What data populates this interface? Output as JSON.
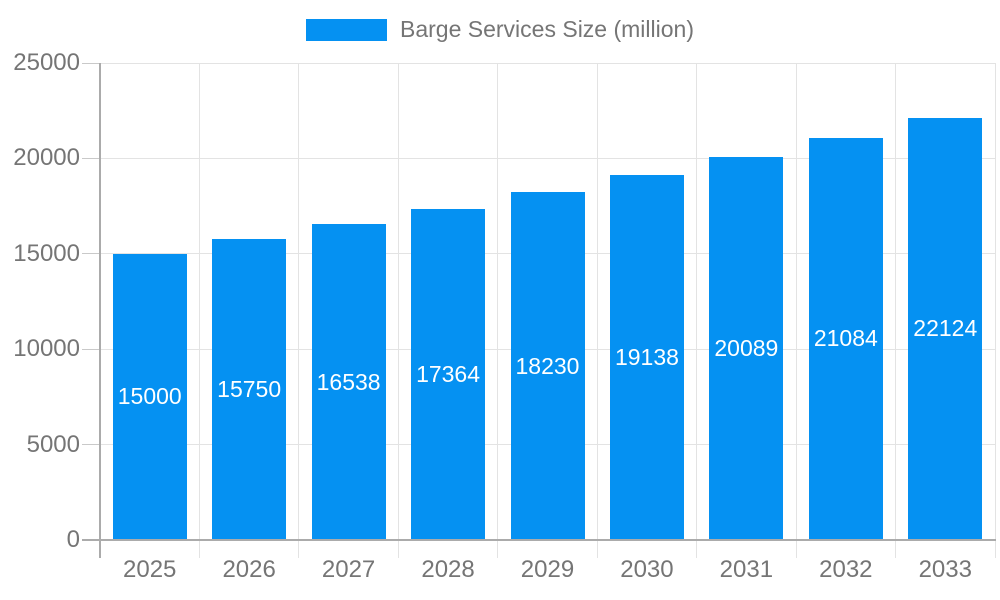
{
  "colors": {
    "bar": "#0591F2",
    "bar_label": "#FFFFFF",
    "axis_line": "#ABABAB",
    "gridline": "#E3E3E3",
    "tick_mark": "#C9C9C9",
    "tick_text": "#757575",
    "background": "#FFFFFF"
  },
  "chart_data": {
    "type": "bar",
    "title": "",
    "legend_label": "Barge Services Size (million)",
    "legend_position": "top",
    "categories": [
      "2025",
      "2026",
      "2027",
      "2028",
      "2029",
      "2030",
      "2031",
      "2032",
      "2033"
    ],
    "series": [
      {
        "name": "Barge Services Size (million)",
        "values": [
          15000,
          15750,
          16538,
          17364,
          18230,
          19138,
          20089,
          21084,
          22124
        ]
      }
    ],
    "values": [
      15000,
      15750,
      16538,
      17364,
      18230,
      19138,
      20089,
      21084,
      22124
    ],
    "bar_value_labels": [
      "15000",
      "15750",
      "16538",
      "17364",
      "18230",
      "19138",
      "20089",
      "21084",
      "22124"
    ],
    "xlabel": "",
    "ylabel": "",
    "ylim": [
      0,
      25000
    ],
    "yticks": [
      0,
      5000,
      10000,
      15000,
      20000,
      25000
    ],
    "ytick_labels": [
      "0",
      "5000",
      "10000",
      "15000",
      "20000",
      "25000"
    ],
    "grid": true,
    "bar_labels_visible": true,
    "bar_label_position": "center"
  }
}
